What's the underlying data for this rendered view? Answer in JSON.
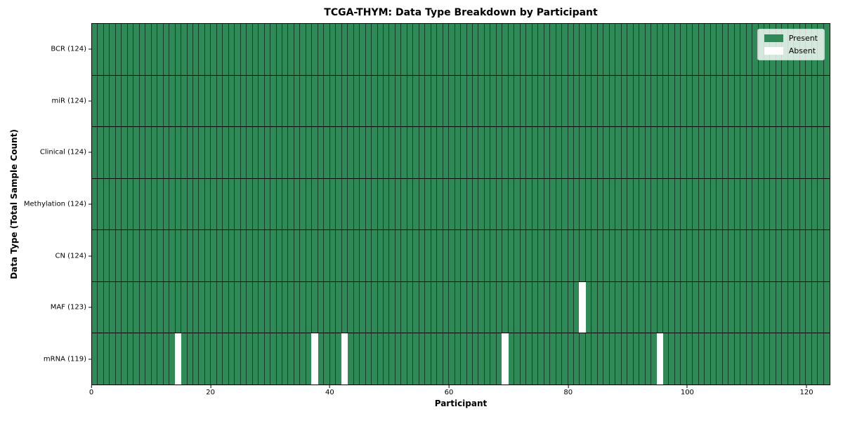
{
  "chart_data": {
    "type": "heatmap",
    "title": "TCGA-THYM: Data Type Breakdown by Participant",
    "xlabel": "Participant",
    "ylabel": "Data Type (Total Sample Count)",
    "n_participants": 124,
    "x_ticks": [
      0,
      20,
      40,
      60,
      80,
      100,
      120
    ],
    "xlim": [
      0,
      124
    ],
    "rows": [
      {
        "label": "BCR (124)",
        "data_type": "BCR",
        "present_count": 124,
        "absent_participants": []
      },
      {
        "label": "miR (124)",
        "data_type": "miR",
        "present_count": 124,
        "absent_participants": []
      },
      {
        "label": "Clinical (124)",
        "data_type": "Clinical",
        "present_count": 124,
        "absent_participants": []
      },
      {
        "label": "Methylation (124)",
        "data_type": "Methylation",
        "present_count": 124,
        "absent_participants": []
      },
      {
        "label": "CN (124)",
        "data_type": "CN",
        "present_count": 124,
        "absent_participants": []
      },
      {
        "label": "MAF (123)",
        "data_type": "MAF",
        "present_count": 123,
        "absent_participants": [
          82
        ]
      },
      {
        "label": "mRNA (119)",
        "data_type": "mRNA",
        "present_count": 119,
        "absent_participants": [
          14,
          37,
          42,
          69,
          95
        ]
      }
    ],
    "legend": [
      {
        "label": "Present",
        "color": "#2e8b57"
      },
      {
        "label": "Absent",
        "color": "#ffffff"
      }
    ],
    "legend_position": "upper right",
    "grid": "cell-edges",
    "colors": {
      "present": "#2e8b57",
      "absent": "#ffffff",
      "cell_edge": "rgba(0,0,0,0.55)",
      "row_divider": "#000000",
      "axes_edge": "#000000",
      "background": "#ffffff"
    }
  }
}
